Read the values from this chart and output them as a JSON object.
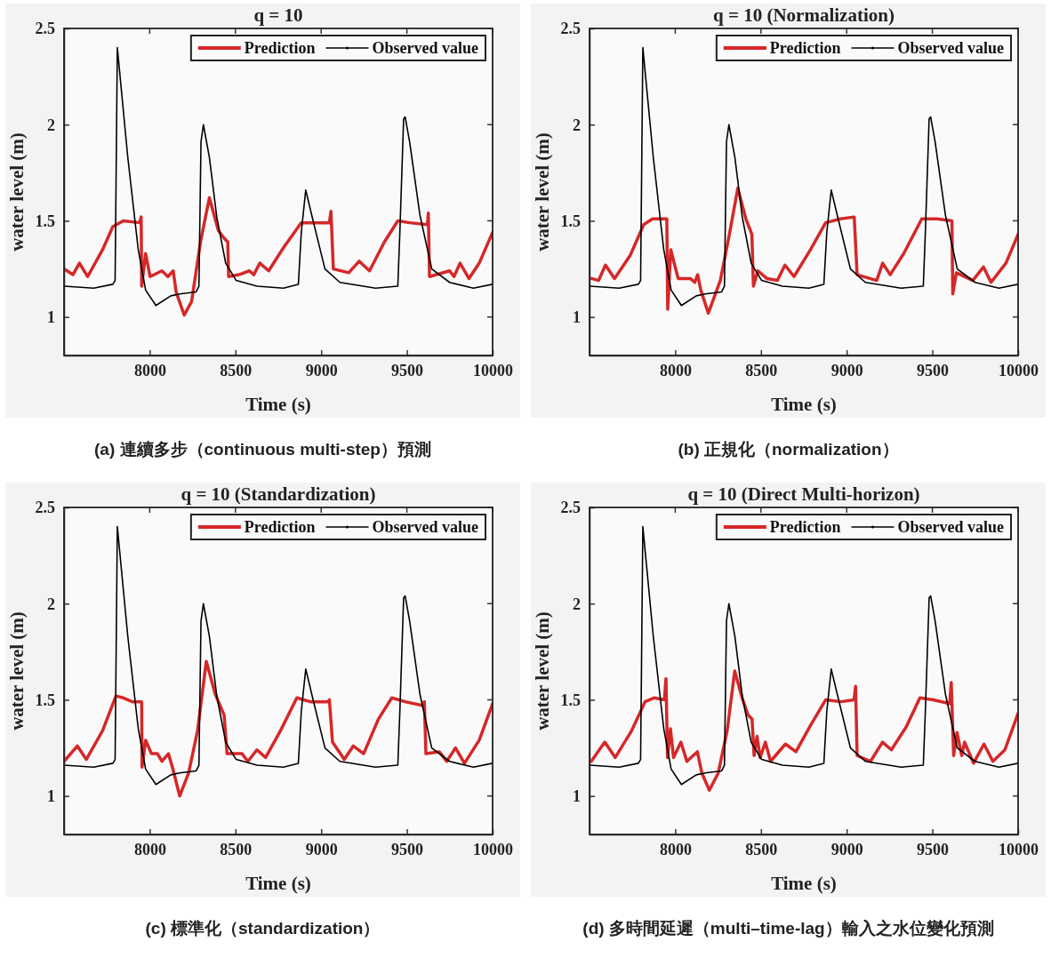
{
  "chart_data": [
    {
      "type": "line",
      "title": "q = 10",
      "xlabel": "Time (s)",
      "ylabel": "water level (m)",
      "xlim": [
        7500,
        10000
      ],
      "xticks": [
        8000,
        8500,
        9000,
        9500,
        10000
      ],
      "ylim": [
        0.8,
        2.5
      ],
      "yticks": [
        1,
        1.5,
        2,
        2.5
      ],
      "legend": "top right",
      "grid": false,
      "annotations": [
        "(a) 連續多步（continuous multi-step）預測"
      ],
      "series": [
        {
          "name": "Prediction",
          "color": "#d62728",
          "x": [
            7500,
            7552,
            7590,
            7638,
            7725,
            7785,
            7846,
            7941,
            7950,
            7953,
            7976,
            8002,
            8071,
            8106,
            8137,
            8154,
            8201,
            8244,
            8296,
            8348,
            8400,
            8434,
            8455,
            8460,
            8521,
            8581,
            8607,
            8642,
            8694,
            8780,
            8884,
            9048,
            9057,
            9071,
            9161,
            9222,
            9282,
            9369,
            9447,
            9516,
            9620,
            9625,
            9632,
            9749,
            9775,
            9810,
            9862,
            9922,
            10000
          ],
          "values": [
            1.25,
            1.22,
            1.28,
            1.21,
            1.35,
            1.47,
            1.5,
            1.49,
            1.52,
            1.16,
            1.33,
            1.21,
            1.24,
            1.21,
            1.24,
            1.13,
            1.01,
            1.08,
            1.39,
            1.62,
            1.45,
            1.41,
            1.39,
            1.21,
            1.22,
            1.24,
            1.22,
            1.28,
            1.24,
            1.36,
            1.49,
            1.49,
            1.55,
            1.25,
            1.23,
            1.29,
            1.24,
            1.39,
            1.5,
            1.49,
            1.48,
            1.54,
            1.21,
            1.24,
            1.21,
            1.28,
            1.2,
            1.28,
            1.44
          ]
        },
        {
          "name": "Observed value",
          "color": "#000000",
          "x": [
            7500,
            7673,
            7785,
            7798,
            7811,
            7872,
            7933,
            7976,
            8036,
            8123,
            8175,
            8270,
            8287,
            8299,
            8313,
            8348,
            8391,
            8443,
            8504,
            8625,
            8780,
            8867,
            8884,
            8910,
            8953,
            9022,
            9109,
            9317,
            9447,
            9459,
            9481,
            9490,
            9516,
            9576,
            9645,
            9749,
            9888,
            10000
          ],
          "values": [
            1.16,
            1.15,
            1.17,
            1.19,
            2.4,
            1.83,
            1.35,
            1.14,
            1.06,
            1.11,
            1.12,
            1.13,
            1.16,
            1.91,
            2.0,
            1.83,
            1.52,
            1.28,
            1.19,
            1.16,
            1.15,
            1.17,
            1.44,
            1.66,
            1.5,
            1.25,
            1.18,
            1.15,
            1.16,
            1.44,
            2.03,
            2.04,
            1.91,
            1.53,
            1.25,
            1.18,
            1.15,
            1.17
          ]
        }
      ]
    },
    {
      "type": "line",
      "title": "q = 10 (Normalization)",
      "xlabel": "Time (s)",
      "ylabel": "water level (m)",
      "xlim": [
        7500,
        10000
      ],
      "xticks": [
        8000,
        8500,
        9000,
        9500,
        10000
      ],
      "ylim": [
        0.8,
        2.5
      ],
      "yticks": [
        1,
        1.5,
        2,
        2.5
      ],
      "legend": "top right",
      "grid": false,
      "annotations": [
        "(b) 正規化（normalization）"
      ],
      "series": [
        {
          "name": "Prediction",
          "color": "#d62728",
          "x": [
            7512,
            7553,
            7593,
            7646,
            7737,
            7816,
            7868,
            7951,
            7956,
            7974,
            8017,
            8088,
            8114,
            8131,
            8149,
            8193,
            8263,
            8316,
            8365,
            8412,
            8447,
            8456,
            8482,
            8535,
            8596,
            8640,
            8693,
            8789,
            8877,
            8965,
            9044,
            9061,
            9175,
            9210,
            9254,
            9333,
            9438,
            9526,
            9614,
            9619,
            9640,
            9736,
            9798,
            9842,
            9929,
            10000
          ],
          "values": [
            1.2,
            1.19,
            1.27,
            1.2,
            1.32,
            1.48,
            1.51,
            1.51,
            1.04,
            1.35,
            1.2,
            1.2,
            1.18,
            1.22,
            1.14,
            1.02,
            1.19,
            1.43,
            1.67,
            1.51,
            1.43,
            1.16,
            1.24,
            1.2,
            1.19,
            1.27,
            1.21,
            1.35,
            1.49,
            1.51,
            1.52,
            1.22,
            1.19,
            1.28,
            1.22,
            1.33,
            1.51,
            1.51,
            1.5,
            1.12,
            1.23,
            1.19,
            1.26,
            1.18,
            1.28,
            1.43
          ]
        },
        {
          "name": "Observed value",
          "color": "#000000",
          "x": [
            7500,
            7673,
            7785,
            7798,
            7811,
            7872,
            7933,
            7976,
            8036,
            8123,
            8175,
            8270,
            8287,
            8299,
            8313,
            8348,
            8391,
            8443,
            8504,
            8625,
            8780,
            8867,
            8884,
            8910,
            8953,
            9022,
            9109,
            9317,
            9447,
            9459,
            9481,
            9490,
            9516,
            9576,
            9645,
            9749,
            9888,
            10000
          ],
          "values": [
            1.16,
            1.15,
            1.17,
            1.19,
            2.4,
            1.83,
            1.35,
            1.14,
            1.06,
            1.11,
            1.12,
            1.13,
            1.16,
            1.91,
            2.0,
            1.83,
            1.52,
            1.28,
            1.19,
            1.16,
            1.15,
            1.17,
            1.44,
            1.66,
            1.5,
            1.25,
            1.18,
            1.15,
            1.16,
            1.44,
            2.03,
            2.04,
            1.91,
            1.53,
            1.25,
            1.18,
            1.15,
            1.17
          ]
        }
      ]
    },
    {
      "type": "line",
      "title": "q = 10 (Standardization)",
      "xlabel": "Time (s)",
      "ylabel": "water level (m)",
      "xlim": [
        7500,
        10000
      ],
      "xticks": [
        8000,
        8500,
        9000,
        9500,
        10000
      ],
      "ylim": [
        0.8,
        2.5
      ],
      "yticks": [
        1,
        1.5,
        2,
        2.5
      ],
      "legend": "top right",
      "grid": false,
      "annotations": [
        "(c) 標準化（standardization）"
      ],
      "series": [
        {
          "name": "Prediction",
          "color": "#d62728",
          "x": [
            7500,
            7578,
            7630,
            7725,
            7803,
            7846,
            7898,
            7953,
            7955,
            7976,
            8010,
            8045,
            8071,
            8109,
            8132,
            8175,
            8227,
            8279,
            8330,
            8382,
            8434,
            8451,
            8538,
            8573,
            8625,
            8676,
            8763,
            8858,
            8936,
            9040,
            9048,
            9066,
            9135,
            9187,
            9248,
            9334,
            9412,
            9490,
            9594,
            9602,
            9611,
            9689,
            9732,
            9784,
            9836,
            9922,
            10000
          ],
          "values": [
            1.18,
            1.26,
            1.19,
            1.34,
            1.52,
            1.51,
            1.49,
            1.49,
            1.15,
            1.29,
            1.22,
            1.22,
            1.18,
            1.22,
            1.15,
            1.0,
            1.12,
            1.34,
            1.7,
            1.53,
            1.42,
            1.22,
            1.22,
            1.18,
            1.24,
            1.2,
            1.34,
            1.51,
            1.49,
            1.49,
            1.5,
            1.28,
            1.19,
            1.26,
            1.22,
            1.4,
            1.51,
            1.49,
            1.47,
            1.49,
            1.22,
            1.23,
            1.18,
            1.25,
            1.17,
            1.29,
            1.48
          ]
        },
        {
          "name": "Observed value",
          "color": "#000000",
          "x": [
            7500,
            7673,
            7785,
            7798,
            7811,
            7872,
            7933,
            7976,
            8036,
            8123,
            8175,
            8270,
            8287,
            8299,
            8313,
            8348,
            8391,
            8443,
            8504,
            8625,
            8780,
            8867,
            8884,
            8910,
            8953,
            9022,
            9109,
            9317,
            9447,
            9459,
            9481,
            9490,
            9516,
            9576,
            9645,
            9749,
            9888,
            10000
          ],
          "values": [
            1.16,
            1.15,
            1.17,
            1.19,
            2.4,
            1.83,
            1.35,
            1.14,
            1.06,
            1.11,
            1.12,
            1.13,
            1.16,
            1.91,
            2.0,
            1.83,
            1.52,
            1.28,
            1.19,
            1.16,
            1.15,
            1.17,
            1.44,
            1.66,
            1.5,
            1.25,
            1.18,
            1.15,
            1.16,
            1.44,
            2.03,
            2.04,
            1.91,
            1.53,
            1.25,
            1.18,
            1.15,
            1.17
          ]
        }
      ]
    },
    {
      "type": "line",
      "title": "q = 10 (Direct Multi-horizon)",
      "xlabel": "Time (s)",
      "ylabel": "water level (m)",
      "xlim": [
        7500,
        10000
      ],
      "xticks": [
        8000,
        8500,
        9000,
        9500,
        10000
      ],
      "ylim": [
        0.8,
        2.5
      ],
      "yticks": [
        1,
        1.5,
        2,
        2.5
      ],
      "legend": "top right",
      "grid": false,
      "annotations": [
        "(d) 多時間延遲（multi–time-lag）輸入之水位變化預測"
      ],
      "series": [
        {
          "name": "Prediction",
          "color": "#d62728",
          "x": [
            7510,
            7589,
            7650,
            7746,
            7824,
            7876,
            7937,
            7946,
            7955,
            7972,
            7990,
            8033,
            8068,
            8129,
            8155,
            8199,
            8251,
            8303,
            8347,
            8390,
            8425,
            8448,
            8460,
            8477,
            8495,
            8526,
            8556,
            8643,
            8704,
            8791,
            8878,
            8965,
            9043,
            9052,
            9061,
            9139,
            9209,
            9261,
            9348,
            9427,
            9505,
            9601,
            9610,
            9624,
            9644,
            9671,
            9688,
            9740,
            9801,
            9853,
            9923,
            10000
          ],
          "values": [
            1.18,
            1.28,
            1.2,
            1.34,
            1.49,
            1.51,
            1.5,
            1.61,
            1.2,
            1.35,
            1.2,
            1.28,
            1.18,
            1.23,
            1.12,
            1.03,
            1.12,
            1.34,
            1.65,
            1.51,
            1.42,
            1.4,
            1.21,
            1.31,
            1.2,
            1.28,
            1.18,
            1.27,
            1.23,
            1.37,
            1.5,
            1.49,
            1.5,
            1.57,
            1.21,
            1.18,
            1.28,
            1.24,
            1.36,
            1.51,
            1.5,
            1.48,
            1.59,
            1.21,
            1.33,
            1.21,
            1.28,
            1.17,
            1.27,
            1.18,
            1.24,
            1.43
          ]
        },
        {
          "name": "Observed value",
          "color": "#000000",
          "x": [
            7500,
            7673,
            7785,
            7798,
            7811,
            7872,
            7933,
            7976,
            8036,
            8123,
            8175,
            8270,
            8287,
            8299,
            8313,
            8348,
            8391,
            8443,
            8504,
            8625,
            8780,
            8867,
            8884,
            8910,
            8953,
            9022,
            9109,
            9317,
            9447,
            9459,
            9481,
            9490,
            9516,
            9576,
            9645,
            9749,
            9888,
            10000
          ],
          "values": [
            1.16,
            1.15,
            1.17,
            1.19,
            2.4,
            1.83,
            1.35,
            1.14,
            1.06,
            1.11,
            1.12,
            1.13,
            1.16,
            1.91,
            2.0,
            1.83,
            1.52,
            1.28,
            1.19,
            1.16,
            1.15,
            1.17,
            1.44,
            1.66,
            1.5,
            1.25,
            1.18,
            1.15,
            1.16,
            1.44,
            2.03,
            2.04,
            1.91,
            1.53,
            1.25,
            1.18,
            1.15,
            1.17
          ]
        }
      ]
    }
  ]
}
